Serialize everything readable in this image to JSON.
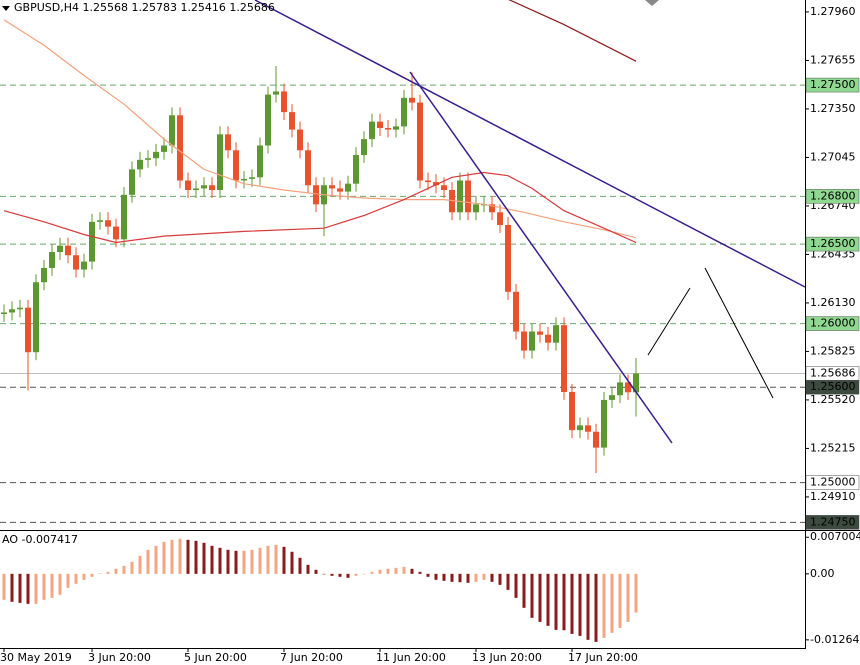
{
  "chart_data": [
    {
      "type": "candlestick",
      "title": "GBPUSD,H4  1.25568 1.25783 1.25416 1.25686",
      "bull_color": "#5d9732",
      "bear_color": "#e8532e",
      "xlim": [
        -0.5,
        100.125
      ],
      "ylim": [
        1.24702,
        1.28035
      ],
      "yticks": [
        {
          "value": 1.2796,
          "label": "1.27960"
        },
        {
          "value": 1.27655,
          "label": "1.27655"
        },
        {
          "value": 1.2735,
          "label": "1.27350"
        },
        {
          "value": 1.27045,
          "label": "1.27045"
        },
        {
          "value": 1.2674,
          "label": "1.26740"
        },
        {
          "value": 1.26435,
          "label": "1.26435"
        },
        {
          "value": 1.2613,
          "label": "1.26130"
        },
        {
          "value": 1.25825,
          "label": "1.25825"
        },
        {
          "value": 1.2552,
          "label": "1.25520"
        },
        {
          "value": 1.25215,
          "label": "1.25215"
        },
        {
          "value": 1.2491,
          "label": "1.24910"
        }
      ],
      "open": [
        1.2606,
        1.2607,
        1.2609,
        1.261,
        1.2582,
        1.2626,
        1.2635,
        1.2645,
        1.2649,
        1.2643,
        1.2634,
        1.2639,
        1.2664,
        1.2665,
        1.2661,
        1.2653,
        1.2681,
        1.2697,
        1.2703,
        1.2704,
        1.2708,
        1.2712,
        1.2731,
        1.269,
        1.2684,
        1.2685,
        1.2687,
        1.2684,
        1.2719,
        1.2709,
        1.269,
        1.2691,
        1.2692,
        1.2712,
        1.2744,
        1.2746,
        1.2733,
        1.2722,
        1.2709,
        1.2687,
        1.2675,
        1.2687,
        1.2685,
        1.2683,
        1.2688,
        1.2706,
        1.2716,
        1.2727,
        1.2723,
        1.2722,
        1.2724,
        1.2742,
        1.2739,
        1.269,
        1.2689,
        1.2687,
        1.2684,
        1.267,
        1.269,
        1.267,
        1.2675,
        1.2675,
        1.267,
        1.2662,
        1.262,
        1.2595,
        1.2583,
        1.2595,
        1.2593,
        1.2588,
        1.2599,
        1.2557,
        1.2533,
        1.2536,
        1.2532,
        1.2522,
        1.2552,
        1.2555,
        1.2563,
        1.25568
      ],
      "high": [
        1.2612,
        1.2614,
        1.2615,
        1.2615,
        1.2631,
        1.264,
        1.265,
        1.2654,
        1.2654,
        1.2648,
        1.2644,
        1.2669,
        1.267,
        1.267,
        1.2666,
        1.2686,
        1.2702,
        1.2708,
        1.2709,
        1.2713,
        1.2717,
        1.2736,
        1.2736,
        1.2695,
        1.269,
        1.2692,
        1.2692,
        1.2724,
        1.2724,
        1.2714,
        1.2696,
        1.2697,
        1.2717,
        1.2749,
        1.2762,
        1.2751,
        1.2738,
        1.2727,
        1.2714,
        1.2692,
        1.2692,
        1.2692,
        1.269,
        1.2693,
        1.2711,
        1.2721,
        1.2732,
        1.2732,
        1.2728,
        1.2729,
        1.2747,
        1.2758,
        1.2744,
        1.2695,
        1.2694,
        1.2692,
        1.2689,
        1.2695,
        1.2695,
        1.268,
        1.268,
        1.268,
        1.2675,
        1.2667,
        1.2625,
        1.26,
        1.26,
        1.26,
        1.2598,
        1.2604,
        1.2604,
        1.2562,
        1.2541,
        1.2541,
        1.2537,
        1.2557,
        1.256,
        1.2568,
        1.2568,
        1.25783
      ],
      "low": [
        1.2601,
        1.2602,
        1.2604,
        1.2558,
        1.2577,
        1.2621,
        1.263,
        1.264,
        1.2638,
        1.2629,
        1.2629,
        1.2634,
        1.2659,
        1.2656,
        1.2648,
        1.2648,
        1.2676,
        1.2692,
        1.2698,
        1.2699,
        1.2703,
        1.2707,
        1.2685,
        1.2679,
        1.2679,
        1.268,
        1.2679,
        1.2679,
        1.2704,
        1.2685,
        1.2685,
        1.2686,
        1.2687,
        1.2707,
        1.2739,
        1.2728,
        1.2717,
        1.2704,
        1.2682,
        1.267,
        1.2655,
        1.268,
        1.2678,
        1.2678,
        1.2683,
        1.2701,
        1.2711,
        1.2718,
        1.2717,
        1.2717,
        1.2719,
        1.2734,
        1.2685,
        1.2684,
        1.2682,
        1.2679,
        1.2665,
        1.2665,
        1.2665,
        1.2665,
        1.267,
        1.2665,
        1.2657,
        1.2615,
        1.259,
        1.2578,
        1.2578,
        1.2588,
        1.2583,
        1.2583,
        1.2552,
        1.2528,
        1.2528,
        1.2527,
        1.2506,
        1.2517,
        1.2547,
        1.255,
        1.2552,
        1.25416
      ],
      "close": [
        1.2607,
        1.2609,
        1.261,
        1.2582,
        1.2626,
        1.2635,
        1.2645,
        1.2649,
        1.2643,
        1.2634,
        1.2639,
        1.2664,
        1.2665,
        1.2661,
        1.2653,
        1.2681,
        1.2697,
        1.2703,
        1.2704,
        1.2708,
        1.2712,
        1.2731,
        1.269,
        1.2684,
        1.2685,
        1.2687,
        1.2684,
        1.2719,
        1.2709,
        1.269,
        1.2691,
        1.2692,
        1.2712,
        1.2744,
        1.2746,
        1.2733,
        1.2722,
        1.2709,
        1.2687,
        1.2675,
        1.2687,
        1.2685,
        1.2683,
        1.2688,
        1.2706,
        1.2716,
        1.2727,
        1.2723,
        1.2722,
        1.2724,
        1.2742,
        1.2739,
        1.269,
        1.2689,
        1.2687,
        1.2684,
        1.267,
        1.269,
        1.267,
        1.2675,
        1.2675,
        1.267,
        1.2662,
        1.262,
        1.2595,
        1.2583,
        1.2595,
        1.2593,
        1.2588,
        1.2599,
        1.2557,
        1.2533,
        1.2536,
        1.2532,
        1.2522,
        1.2552,
        1.2555,
        1.2563,
        1.25568,
        1.25686
      ],
      "lines": [
        {
          "color": "#f4a07a",
          "x": [
            0,
            5,
            10,
            15,
            20,
            25,
            30,
            35,
            40,
            45,
            50,
            55,
            60,
            65,
            70,
            75,
            79
          ],
          "values": [
            1.2791,
            1.2775,
            1.2756,
            1.2738,
            1.2716,
            1.2697,
            1.2688,
            1.2684,
            1.2681,
            1.2679,
            1.2678,
            1.2678,
            1.2675,
            1.267,
            1.2664,
            1.2659,
            1.2654
          ]
        },
        {
          "color": "#d83a3a",
          "x": [
            0,
            5,
            10,
            14,
            20,
            30,
            40,
            45,
            50,
            53,
            56,
            60,
            63,
            66,
            70,
            75,
            79
          ],
          "values": [
            1.2671,
            1.2664,
            1.2656,
            1.2651,
            1.2655,
            1.2658,
            1.266,
            1.2668,
            1.2678,
            1.2685,
            1.2692,
            1.2695,
            1.2693,
            1.2685,
            1.2671,
            1.266,
            1.2651
          ]
        },
        {
          "color": "#8b1a1a",
          "x": [
            63,
            70,
            79
          ],
          "values": [
            1.2804,
            1.2788,
            1.2765
          ]
        }
      ],
      "levels": [
        {
          "value": 1.275,
          "label": "1.27500",
          "color": "#6aa86a",
          "box": "#8fd88f",
          "text_color": "#000000",
          "style": "dashed"
        },
        {
          "value": 1.268,
          "label": "1.26800",
          "color": "#6aa86a",
          "box": "#8fd88f",
          "text_color": "#000000",
          "style": "dashed"
        },
        {
          "value": 1.265,
          "label": "1.26500",
          "color": "#6aa86a",
          "box": "#8fd88f",
          "text_color": "#000000",
          "style": "dashed"
        },
        {
          "value": 1.26,
          "label": "1.26000",
          "color": "#6aa86a",
          "box": "#8fd88f",
          "text_color": "#000000",
          "style": "dashed"
        },
        {
          "value": 1.25686,
          "label": "1.25686",
          "color": "#c0c0c0",
          "box": "#ffffff",
          "text_color": "#000000",
          "style": "solid"
        },
        {
          "value": 1.256,
          "label": "1.25600",
          "color": "#555555",
          "box": "#3c4a40",
          "text_color": "#ffffff",
          "style": "dashed"
        },
        {
          "value": 1.25,
          "label": "1.25000",
          "color": "#555555",
          "box": "#ffffff",
          "text_color": "#000000",
          "style": "dashed"
        },
        {
          "value": 1.2475,
          "label": "1.24750",
          "color": "#555555",
          "box": "#3c4a40",
          "text_color": "#ffffff",
          "style": "dashed"
        }
      ]
    },
    {
      "type": "bar",
      "title": "AO -0.007417",
      "up_color": "#f4a582",
      "down_color": "#8b1a1a",
      "xlim": [
        -0.5,
        100.125
      ],
      "ylim": [
        -0.0142,
        0.0082
      ],
      "yticks": [
        0.007004,
        {
          "value": 0,
          "label": "0.00"
        },
        -0.012643
      ],
      "xticks": [
        {
          "value": 0,
          "label": "30 May 2019"
        },
        {
          "value": 11,
          "label": "3 Jun 20:00"
        },
        {
          "value": 23,
          "label": "5 Jun 20:00"
        },
        {
          "value": 35,
          "label": "7 Jun 20:00"
        },
        {
          "value": 47,
          "label": "11 Jun 20:00"
        },
        {
          "value": 59,
          "label": "13 Jun 20:00"
        },
        {
          "value": 71,
          "label": "17 Jun 20:00"
        }
      ],
      "values": [
        -0.00498,
        -0.00536,
        -0.00556,
        -0.00575,
        -0.00575,
        -0.00498,
        -0.0046,
        -0.00402,
        -0.00268,
        -0.00192,
        -0.00115,
        -0.00057,
        0.0001,
        0.00038,
        0.00096,
        0.00153,
        0.0023,
        0.00345,
        0.0046,
        0.00536,
        0.00613,
        0.00651,
        0.00671,
        0.00651,
        0.00632,
        0.00594,
        0.00536,
        0.00498,
        0.0046,
        0.00441,
        0.00441,
        0.0046,
        0.00498,
        0.00536,
        0.00556,
        0.00517,
        0.00422,
        0.00307,
        0.00172,
        0.00077,
        -0.0001,
        -0.00038,
        -0.00057,
        -0.00077,
        -0.00038,
        -5e-05,
        0.00038,
        0.00077,
        0.00096,
        0.00115,
        0.00134,
        0.00096,
        0.00038,
        -0.00057,
        -0.00115,
        -0.00134,
        -0.00153,
        -0.0016,
        -0.00172,
        -0.00153,
        -0.00115,
        -0.00153,
        -0.00211,
        -0.00307,
        -0.0046,
        -0.00651,
        -0.00843,
        -0.0092,
        -0.00996,
        -0.01073,
        -0.0108,
        -0.0115,
        -0.01188,
        -0.01264,
        -0.01303,
        -0.01226,
        -0.0113,
        -0.01035,
        -0.0092,
        -0.007417
      ]
    }
  ]
}
